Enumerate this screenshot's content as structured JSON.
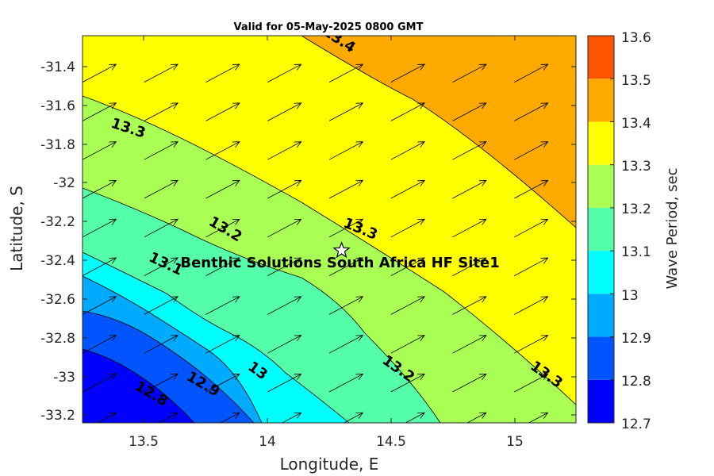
{
  "title": "Valid for 05-May-2025 0800 GMT",
  "xlabel": "Longitude, E",
  "ylabel": "Latitude, S",
  "colorbar_label": "Wave Period, sec",
  "site_label": "Benthic Solutions South Africa HF Site1",
  "chart_data": {
    "type": "contour",
    "x_ticks": [
      "13.5",
      "14",
      "14.5",
      "15"
    ],
    "y_ticks": [
      "-31.4",
      "-31.6",
      "-31.8",
      "-32",
      "-32.2",
      "-32.4",
      "-32.6",
      "-32.8",
      "-33",
      "-33.2"
    ],
    "xlim": [
      13.25,
      15.25
    ],
    "ylim": [
      -33.25,
      -31.25
    ],
    "colorbar_ticks": [
      "12.7",
      "12.8",
      "12.9",
      "13",
      "13.1",
      "13.2",
      "13.3",
      "13.4",
      "13.5",
      "13.6"
    ],
    "colorbar_range": [
      12.7,
      13.6
    ],
    "levels": [
      12.7,
      12.8,
      12.9,
      13.0,
      13.1,
      13.2,
      13.3,
      13.4,
      13.5,
      13.6
    ],
    "colors": [
      "#0000ff",
      "#0055ff",
      "#00aaff",
      "#00ffff",
      "#55ffaa",
      "#aaff55",
      "#ffff00",
      "#ffaa00",
      "#ff5500"
    ],
    "contour_labels": [
      {
        "text": "13.4",
        "lon": 14.28,
        "lat": -31.29
      },
      {
        "text": "13.3",
        "lon": 13.43,
        "lat": -31.75
      },
      {
        "text": "13.3",
        "lon": 14.37,
        "lat": -32.27
      },
      {
        "text": "13.3",
        "lon": 15.12,
        "lat": -33.02
      },
      {
        "text": "13.2",
        "lon": 13.82,
        "lat": -32.27
      },
      {
        "text": "13.2",
        "lon": 14.52,
        "lat": -32.99
      },
      {
        "text": "13.1",
        "lon": 13.58,
        "lat": -32.45
      },
      {
        "text": "13",
        "lon": 13.95,
        "lat": -33.0
      },
      {
        "text": "12.9",
        "lon": 13.73,
        "lat": -33.07
      },
      {
        "text": "12.8",
        "lon": 13.52,
        "lat": -33.12
      }
    ],
    "site": {
      "lon": 14.3,
      "lat": -32.36
    },
    "vector_direction_deg": 62,
    "vector_grid": {
      "lon_start": 13.25,
      "lon_step": 0.25,
      "lat_start": -31.4,
      "lat_step": -0.2
    }
  }
}
